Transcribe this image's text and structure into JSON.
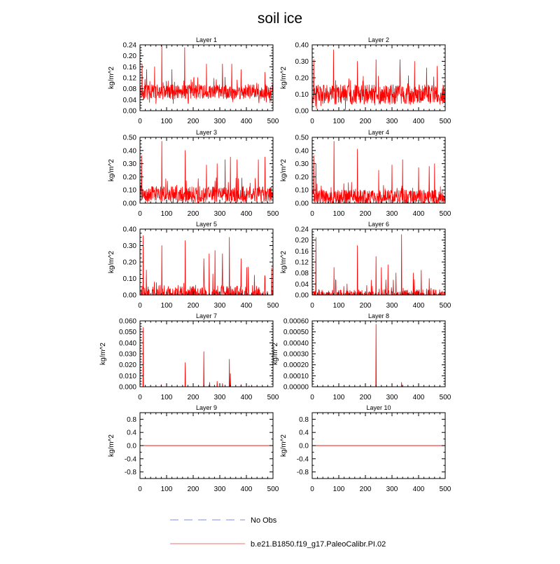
{
  "title": "soil ice",
  "legend": [
    {
      "label": "No Obs",
      "style": "dashed",
      "color": "#aab4ee"
    },
    {
      "label": "b.e21.B1850.f19_g17.PaleoCalibr.PI.02",
      "style": "solid",
      "color": "#f5a0a0"
    }
  ],
  "series_color": "#ff0000",
  "chart_data": [
    {
      "type": "line",
      "title": "Layer 1",
      "ylabel": "kg/m^2",
      "xlim": [
        0,
        500
      ],
      "ylim": [
        0,
        0.24
      ],
      "xticks": [
        "0",
        "100",
        "200",
        "300",
        "400",
        "500"
      ],
      "yticks": [
        "0.00",
        "0.04",
        "0.08",
        "0.12",
        "0.16",
        "0.20",
        "0.24"
      ],
      "pattern": {
        "base": 0.06,
        "noise": 0.045,
        "seed": 11,
        "spikes": [
          [
            8,
            0.17
          ],
          [
            25,
            0.15
          ],
          [
            55,
            0.16
          ],
          [
            82,
            0.24
          ],
          [
            120,
            0.15
          ],
          [
            168,
            0.23
          ],
          [
            250,
            0.17
          ],
          [
            310,
            0.17
          ],
          [
            345,
            0.17
          ],
          [
            380,
            0.15
          ],
          [
            470,
            0.14
          ]
        ]
      }
    },
    {
      "type": "line",
      "title": "Layer 2",
      "ylabel": "kg/m^2",
      "xlim": [
        0,
        500
      ],
      "ylim": [
        0,
        0.4
      ],
      "xticks": [
        "0",
        "100",
        "200",
        "300",
        "400",
        "500"
      ],
      "yticks": [
        "0.00",
        "0.10",
        "0.20",
        "0.30",
        "0.40"
      ],
      "pattern": {
        "base": 0.08,
        "noise": 0.1,
        "seed": 23,
        "spikes": [
          [
            6,
            0.31
          ],
          [
            80,
            0.37
          ],
          [
            170,
            0.3
          ],
          [
            240,
            0.31
          ],
          [
            330,
            0.31
          ],
          [
            385,
            0.3
          ],
          [
            430,
            0.26
          ],
          [
            470,
            0.27
          ]
        ]
      }
    },
    {
      "type": "line",
      "title": "Layer 3",
      "ylabel": "kg/m^2",
      "xlim": [
        0,
        500
      ],
      "ylim": [
        0,
        0.5
      ],
      "xticks": [
        "0",
        "100",
        "200",
        "300",
        "400",
        "500"
      ],
      "yticks": [
        "0.00",
        "0.10",
        "0.20",
        "0.30",
        "0.40",
        "0.50"
      ],
      "pattern": {
        "base": 0.05,
        "noise": 0.1,
        "seed": 37,
        "spikes": [
          [
            6,
            0.36
          ],
          [
            82,
            0.47
          ],
          [
            170,
            0.4
          ],
          [
            250,
            0.29
          ],
          [
            290,
            0.3
          ],
          [
            320,
            0.33
          ],
          [
            340,
            0.35
          ],
          [
            365,
            0.33
          ],
          [
            445,
            0.33
          ],
          [
            470,
            0.35
          ]
        ]
      }
    },
    {
      "type": "line",
      "title": "Layer 4",
      "ylabel": "kg/m^2",
      "xlim": [
        0,
        500
      ],
      "ylim": [
        0,
        0.5
      ],
      "xticks": [
        "0",
        "100",
        "200",
        "300",
        "400",
        "500"
      ],
      "yticks": [
        "0.00",
        "0.10",
        "0.20",
        "0.30",
        "0.40",
        "0.50"
      ],
      "pattern": {
        "base": 0.03,
        "noise": 0.09,
        "seed": 41,
        "spikes": [
          [
            6,
            0.36
          ],
          [
            14,
            0.3
          ],
          [
            82,
            0.47
          ],
          [
            170,
            0.41
          ],
          [
            250,
            0.25
          ],
          [
            300,
            0.29
          ],
          [
            340,
            0.33
          ],
          [
            400,
            0.27
          ],
          [
            440,
            0.28
          ],
          [
            460,
            0.3
          ]
        ]
      }
    },
    {
      "type": "line",
      "title": "Layer 5",
      "ylabel": "kg/m^2",
      "xlim": [
        0,
        500
      ],
      "ylim": [
        0,
        0.4
      ],
      "xticks": [
        "0",
        "100",
        "200",
        "300",
        "400",
        "500"
      ],
      "yticks": [
        "0.00",
        "0.10",
        "0.20",
        "0.30",
        "0.40"
      ],
      "pattern": {
        "base": 0.005,
        "noise": 0.06,
        "seed": 53,
        "spikes": [
          [
            12,
            0.36
          ],
          [
            82,
            0.3
          ],
          [
            170,
            0.33
          ],
          [
            240,
            0.22
          ],
          [
            260,
            0.25
          ],
          [
            282,
            0.27
          ],
          [
            310,
            0.25
          ],
          [
            336,
            0.35
          ],
          [
            380,
            0.22
          ],
          [
            430,
            0.12
          ],
          [
            470,
            0.11
          ]
        ]
      }
    },
    {
      "type": "line",
      "title": "Layer 6",
      "ylabel": "kg/m^2",
      "xlim": [
        0,
        500
      ],
      "ylim": [
        0,
        0.24
      ],
      "xticks": [
        "0",
        "100",
        "200",
        "300",
        "400",
        "500"
      ],
      "yticks": [
        "0.00",
        "0.04",
        "0.08",
        "0.12",
        "0.16",
        "0.20",
        "0.24"
      ],
      "pattern": {
        "base": 0,
        "noise": 0.02,
        "seed": 67,
        "spikes": [
          [
            14,
            0.21
          ],
          [
            82,
            0.1
          ],
          [
            170,
            0.18
          ],
          [
            240,
            0.14
          ],
          [
            260,
            0.1
          ],
          [
            285,
            0.11
          ],
          [
            315,
            0.08
          ],
          [
            336,
            0.22
          ],
          [
            380,
            0.08
          ],
          [
            410,
            0.09
          ],
          [
            440,
            0.06
          ]
        ]
      }
    },
    {
      "type": "line",
      "title": "Layer 7",
      "ylabel": "kg/m^2",
      "xlim": [
        0,
        500
      ],
      "ylim": [
        0,
        0.06
      ],
      "xticks": [
        "0",
        "100",
        "200",
        "300",
        "400",
        "500"
      ],
      "yticks": [
        "0.000",
        "0.010",
        "0.020",
        "0.030",
        "0.040",
        "0.050",
        "0.060"
      ],
      "pattern": {
        "base": 0,
        "noise": 0,
        "seed": 71,
        "spikes": [
          [
            12,
            0.054
          ],
          [
            80,
            0.002
          ],
          [
            170,
            0.022
          ],
          [
            240,
            0.032
          ],
          [
            262,
            0.004
          ],
          [
            290,
            0.005
          ],
          [
            310,
            0.003
          ],
          [
            336,
            0.025
          ],
          [
            340,
            0.012
          ],
          [
            380,
            0.002
          ],
          [
            410,
            0.001
          ]
        ]
      }
    },
    {
      "type": "line",
      "title": "Layer 8",
      "ylabel": "kg/m^2",
      "xlim": [
        0,
        500
      ],
      "ylim": [
        0,
        0.0006
      ],
      "xticks": [
        "0",
        "100",
        "200",
        "300",
        "400",
        "500"
      ],
      "yticks": [
        "0.00000",
        "0.00010",
        "0.00020",
        "0.00030",
        "0.00040",
        "0.00050",
        "0.00060"
      ],
      "pattern": {
        "base": 0,
        "noise": 0,
        "seed": 83,
        "spikes": [
          [
            240,
            0.00057
          ],
          [
            336,
            4e-05
          ]
        ]
      }
    },
    {
      "type": "line",
      "title": "Layer 9",
      "ylabel": "kg/m^2",
      "xlim": [
        0,
        500
      ],
      "ylim": [
        -1,
        1
      ],
      "xticks": [
        "0",
        "100",
        "200",
        "300",
        "400",
        "500"
      ],
      "yticks": [
        "-0.8",
        "-0.4",
        "0.0",
        "0.4",
        "0.8"
      ],
      "yticks_minor": [
        "-0.6",
        "-0.2",
        "0.2",
        "0.6"
      ],
      "pattern": {
        "base": 0,
        "noise": 0,
        "seed": 0,
        "spikes": []
      }
    },
    {
      "type": "line",
      "title": "Layer 10",
      "ylabel": "kg/m^2",
      "xlim": [
        0,
        500
      ],
      "ylim": [
        -1,
        1
      ],
      "xticks": [
        "0",
        "100",
        "200",
        "300",
        "400",
        "500"
      ],
      "yticks": [
        "-0.8",
        "-0.4",
        "0.0",
        "0.4",
        "0.8"
      ],
      "yticks_minor": [
        "-0.6",
        "-0.2",
        "0.2",
        "0.6"
      ],
      "pattern": {
        "base": 0,
        "noise": 0,
        "seed": 0,
        "spikes": []
      }
    }
  ]
}
